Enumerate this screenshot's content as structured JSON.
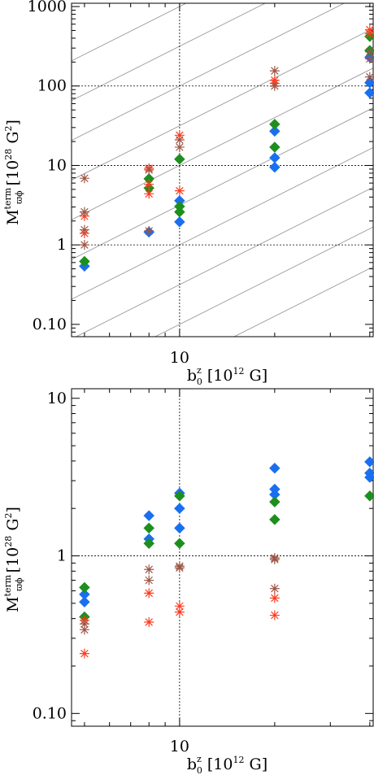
{
  "colors": {
    "blue": "#1a6ff0",
    "green": "#1e8f1e",
    "red": "#ff3b1f",
    "brown": "#9c5545",
    "diagonal": "#9a9a9a"
  },
  "chart_data": [
    {
      "type": "scatter",
      "xscale": "log",
      "yscale": "log",
      "xlim": [
        4.55,
        41
      ],
      "ylim": [
        0.07,
        1100
      ],
      "xticks": [
        10
      ],
      "xtick_labels": [
        "10"
      ],
      "yticks": [
        0.1,
        1,
        10,
        100,
        1000
      ],
      "ytick_labels": [
        "0.10",
        "1",
        "10",
        "100",
        "1000"
      ],
      "xlabel": {
        "main": "b",
        "sub": "0",
        "sup": "z",
        "rest": " [10",
        "exp": "12",
        "end": " G]"
      },
      "ylabel": {
        "main": "M",
        "sub": "ϖϕ",
        "sup": "term",
        "rest": " [10",
        "exp": "28",
        "end": " G",
        "exp2": "2",
        "close": "]"
      },
      "reference_lines": {
        "x": [
          10
        ],
        "y": [
          1,
          10,
          100
        ]
      },
      "diagonal_lines": true,
      "series": [
        {
          "marker": "diamond",
          "color": "blue",
          "points": [
            [
              5,
              0.54
            ],
            [
              8,
              1.45
            ],
            [
              10,
              1.95
            ],
            [
              10,
              3.6
            ],
            [
              20,
              9.5
            ],
            [
              20,
              12.5
            ],
            [
              20,
              27
            ],
            [
              40,
              82
            ],
            [
              40,
              110
            ],
            [
              40,
              230
            ]
          ]
        },
        {
          "marker": "diamond",
          "color": "green",
          "points": [
            [
              5,
              0.62
            ],
            [
              8,
              5.2
            ],
            [
              8,
              6.8
            ],
            [
              10,
              2.6
            ],
            [
              10,
              3.05
            ],
            [
              10,
              12
            ],
            [
              20,
              17
            ],
            [
              20,
              33
            ],
            [
              40,
              280
            ],
            [
              40,
              420
            ]
          ]
        },
        {
          "marker": "asterisk",
          "color": "red",
          "points": [
            [
              5,
              1.4
            ],
            [
              5,
              2.3
            ],
            [
              8,
              4.4
            ],
            [
              8,
              5.8
            ],
            [
              8,
              9.2
            ],
            [
              10,
              4.8
            ],
            [
              10,
              24
            ],
            [
              20,
              108
            ],
            [
              20,
              118
            ],
            [
              40,
              455
            ],
            [
              40,
              510
            ]
          ]
        },
        {
          "marker": "asterisk",
          "color": "brown",
          "points": [
            [
              5,
              1.0
            ],
            [
              5,
              1.55
            ],
            [
              5,
              2.6
            ],
            [
              5,
              6.9
            ],
            [
              8,
              1.5
            ],
            [
              8,
              8.8
            ],
            [
              10,
              17
            ],
            [
              10,
              21
            ],
            [
              20,
              100
            ],
            [
              20,
              155
            ],
            [
              40,
              130
            ],
            [
              40,
              220
            ],
            [
              40,
              270
            ]
          ]
        }
      ]
    },
    {
      "type": "scatter",
      "xscale": "log",
      "yscale": "log",
      "xlim": [
        4.55,
        41
      ],
      "ylim": [
        0.083,
        11.5
      ],
      "xticks": [
        10
      ],
      "xtick_labels": [
        "10"
      ],
      "yticks": [
        0.1,
        1,
        10
      ],
      "ytick_labels": [
        "0.10",
        "1",
        "10"
      ],
      "xlabel": {
        "main": "b",
        "sub": "0",
        "sup": "z",
        "rest": " [10",
        "exp": "12",
        "end": " G]"
      },
      "ylabel": {
        "main": "M",
        "sub": "ϖϕ",
        "sup": "term",
        "rest": " [10",
        "exp": "28",
        "end": " G",
        "exp2": "2",
        "close": "]"
      },
      "reference_lines": {
        "x": [
          10
        ],
        "y": [
          1
        ]
      },
      "diagonal_lines": false,
      "series": [
        {
          "marker": "diamond",
          "color": "blue",
          "points": [
            [
              5,
              0.51
            ],
            [
              5,
              0.57
            ],
            [
              8,
              1.28
            ],
            [
              8,
              1.8
            ],
            [
              10,
              1.5
            ],
            [
              10,
              2.0
            ],
            [
              10,
              2.5
            ],
            [
              20,
              2.45
            ],
            [
              20,
              2.65
            ],
            [
              20,
              3.6
            ],
            [
              40,
              3.15
            ],
            [
              40,
              3.35
            ],
            [
              40,
              3.95
            ]
          ]
        },
        {
          "marker": "diamond",
          "color": "green",
          "points": [
            [
              5,
              0.41
            ],
            [
              5,
              0.63
            ],
            [
              8,
              1.2
            ],
            [
              8,
              1.5
            ],
            [
              10,
              1.2
            ],
            [
              10,
              2.4
            ],
            [
              20,
              1.7
            ],
            [
              20,
              2.2
            ],
            [
              40,
              2.4
            ]
          ]
        },
        {
          "marker": "asterisk",
          "color": "red",
          "points": [
            [
              5,
              0.24
            ],
            [
              5,
              0.39
            ],
            [
              8,
              0.38
            ],
            [
              8,
              0.58
            ],
            [
              10,
              0.44
            ],
            [
              10,
              0.48
            ],
            [
              20,
              0.42
            ],
            [
              20,
              0.54
            ]
          ]
        },
        {
          "marker": "asterisk",
          "color": "brown",
          "points": [
            [
              5,
              0.34
            ],
            [
              5,
              0.37
            ],
            [
              8,
              0.7
            ],
            [
              8,
              0.82
            ],
            [
              10,
              0.84
            ],
            [
              10,
              0.86
            ],
            [
              20,
              0.62
            ],
            [
              20,
              0.95
            ],
            [
              20,
              0.97
            ]
          ]
        }
      ]
    }
  ]
}
